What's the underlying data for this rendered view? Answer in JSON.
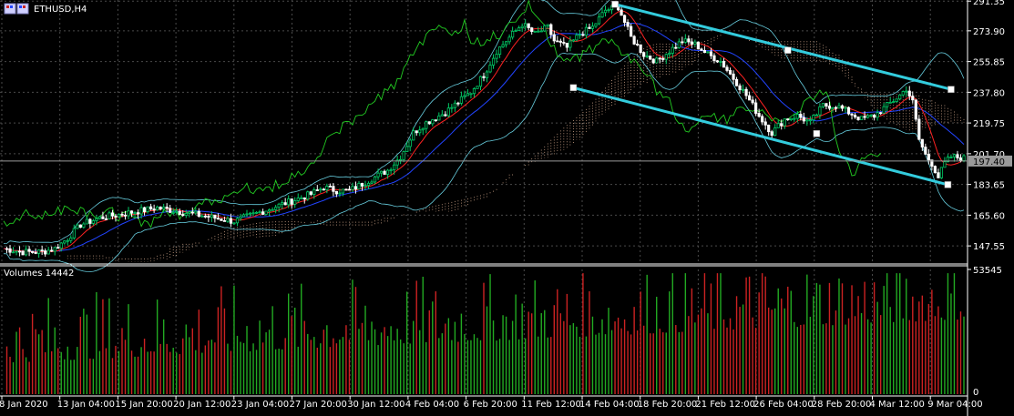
{
  "window": {
    "title": "ETHUSD,H4",
    "icon": "window-icon"
  },
  "chart_data": {
    "type": "candlestick",
    "symbol": "ETHUSD",
    "timeframe": "H4",
    "ylim": [
      138,
      292
    ],
    "yticks": [
      291.35,
      273.9,
      255.85,
      237.8,
      219.75,
      201.7,
      183.65,
      165.6,
      147.55
    ],
    "ytick_labels": [
      "291.35",
      "273.90",
      "255.85",
      "237.80",
      "219.75",
      "201.70",
      "183.65",
      "165.60",
      "147.55"
    ],
    "current_price": 197.4,
    "current_price_label": "197.40",
    "xtick_labels": [
      "8 Jan 2020",
      "13 Jan 04:00",
      "15 Jan 20:00",
      "20 Jan 12:00",
      "23 Jan 04:00",
      "27 Jan 20:00",
      "30 Jan 12:00",
      "4 Feb 04:00",
      "6 Feb 20:00",
      "11 Feb 12:00",
      "14 Feb 04:00",
      "18 Feb 20:00",
      "21 Feb 12:00",
      "26 Feb 04:00",
      "28 Feb 20:00",
      "4 Mar 12:00",
      "9 Mar 04:00"
    ],
    "price_path": [
      [
        0,
        146
      ],
      [
        6,
        144
      ],
      [
        12,
        144
      ],
      [
        16,
        146
      ],
      [
        20,
        152
      ],
      [
        24,
        160
      ],
      [
        30,
        164
      ],
      [
        36,
        166
      ],
      [
        42,
        168
      ],
      [
        48,
        170
      ],
      [
        54,
        168
      ],
      [
        60,
        166
      ],
      [
        66,
        164
      ],
      [
        72,
        162
      ],
      [
        78,
        166
      ],
      [
        84,
        170
      ],
      [
        90,
        174
      ],
      [
        96,
        178
      ],
      [
        100,
        182
      ],
      [
        104,
        180
      ],
      [
        108,
        180
      ],
      [
        114,
        186
      ],
      [
        120,
        192
      ],
      [
        124,
        200
      ],
      [
        128,
        214
      ],
      [
        132,
        220
      ],
      [
        138,
        226
      ],
      [
        142,
        232
      ],
      [
        146,
        238
      ],
      [
        150,
        248
      ],
      [
        154,
        262
      ],
      [
        158,
        270
      ],
      [
        162,
        278
      ],
      [
        166,
        272
      ],
      [
        170,
        276
      ],
      [
        172,
        268
      ],
      [
        176,
        264
      ],
      [
        180,
        272
      ],
      [
        184,
        276
      ],
      [
        188,
        286
      ],
      [
        192,
        288
      ],
      [
        196,
        270
      ],
      [
        200,
        260
      ],
      [
        204,
        256
      ],
      [
        208,
        262
      ],
      [
        212,
        268
      ],
      [
        216,
        266
      ],
      [
        220,
        260
      ],
      [
        224,
        256
      ],
      [
        228,
        246
      ],
      [
        232,
        236
      ],
      [
        236,
        224
      ],
      [
        240,
        214
      ],
      [
        244,
        222
      ],
      [
        248,
        224
      ],
      [
        252,
        220
      ],
      [
        256,
        230
      ],
      [
        260,
        230
      ],
      [
        264,
        226
      ],
      [
        268,
        222
      ],
      [
        272,
        224
      ],
      [
        276,
        230
      ],
      [
        280,
        236
      ],
      [
        282,
        240
      ],
      [
        284,
        232
      ],
      [
        286,
        210
      ],
      [
        288,
        201
      ],
      [
        290,
        196
      ],
      [
        292,
        188
      ],
      [
        294,
        196
      ],
      [
        296,
        200
      ],
      [
        300,
        199
      ]
    ],
    "channel": {
      "upper": {
        "from": [
          191,
          289.5
        ],
        "to": [
          296,
          239.5
        ]
      },
      "lower": {
        "from": [
          178,
          240.5
        ],
        "to": [
          295,
          183.5
        ]
      },
      "markers": [
        [
          191,
          289.5
        ],
        [
          245,
          262.5
        ],
        [
          296,
          239.5
        ],
        [
          178,
          240.5
        ],
        [
          254,
          213.5
        ],
        [
          295,
          183.5
        ]
      ]
    },
    "indicators": [
      "Bollinger Bands",
      "Ichimoku Kumo",
      "Moving Averages",
      "Chikou Span"
    ],
    "volumes": {
      "label": "Volumes 14442",
      "ylim": [
        0,
        53545
      ],
      "ytick_labels": [
        "53545",
        "0"
      ]
    },
    "colors": {
      "background": "#000000",
      "grid": "#4a4a4a",
      "bull": "#00cc66",
      "bear": "#ffffff",
      "channel": "#33ccdd",
      "bands": "#66ccdd",
      "ma_fast": "#ff2222",
      "ma_slow": "#2244ff",
      "lagging": "#22cc22",
      "cloud": "#f0c0a0",
      "volume_up": "#22aa22",
      "volume_down": "#cc2222"
    }
  }
}
